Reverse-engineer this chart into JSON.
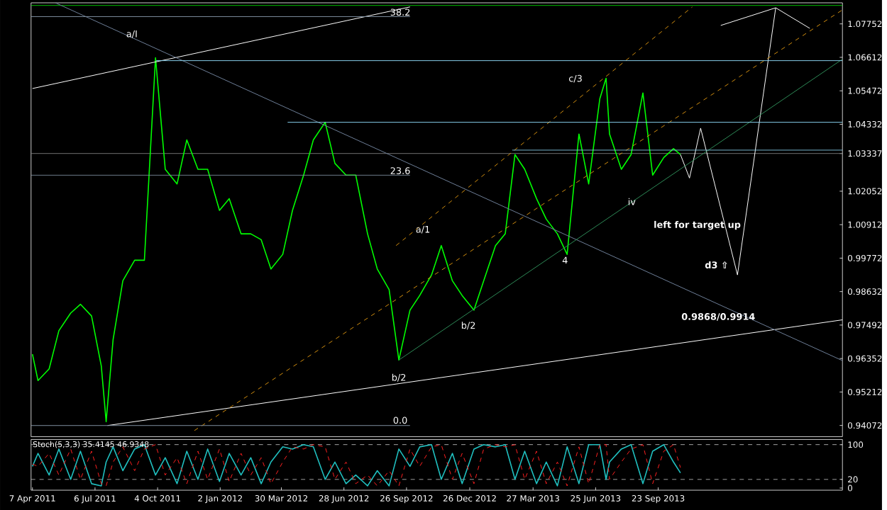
{
  "chart_data": [
    {
      "type": "line",
      "x": [
        "2011-04-07",
        "2011-04-15",
        "2011-05-01",
        "2011-05-15",
        "2011-06-01",
        "2011-06-15",
        "2011-07-01",
        "2011-07-15",
        "2011-07-22",
        "2011-08-01",
        "2011-08-15",
        "2011-09-01",
        "2011-09-15",
        "2011-10-01",
        "2011-10-15",
        "2011-11-01",
        "2011-11-15",
        "2011-12-01",
        "2011-12-15",
        "2012-01-01",
        "2012-01-15",
        "2012-02-01",
        "2012-02-15",
        "2012-03-01",
        "2012-03-15",
        "2012-04-01",
        "2012-04-15",
        "2012-05-01",
        "2012-05-15",
        "2012-06-01",
        "2012-06-15",
        "2012-07-01",
        "2012-07-15",
        "2012-08-01",
        "2012-08-15",
        "2012-09-01",
        "2012-09-15",
        "2012-10-01",
        "2012-10-15",
        "2012-11-01",
        "2012-11-15",
        "2012-12-01",
        "2012-12-15",
        "2013-01-01",
        "2013-01-15",
        "2013-02-01",
        "2013-02-15",
        "2013-03-01",
        "2013-03-15",
        "2013-04-01",
        "2013-04-15",
        "2013-05-01",
        "2013-05-15",
        "2013-06-01",
        "2013-06-15",
        "2013-07-01",
        "2013-07-10",
        "2013-07-15",
        "2013-08-01",
        "2013-08-15",
        "2013-09-01",
        "2013-09-15",
        "2013-10-01",
        "2013-10-15",
        "2013-10-25"
      ],
      "series": [
        {
          "color": "#00ff00",
          "values": [
            0.965,
            0.956,
            0.96,
            0.973,
            0.979,
            0.982,
            0.978,
            0.961,
            0.942,
            0.97,
            0.99,
            0.997,
            0.997,
            1.066,
            1.028,
            1.023,
            1.038,
            1.028,
            1.028,
            1.014,
            1.018,
            1.006,
            1.006,
            1.004,
            0.994,
            0.999,
            1.014,
            1.026,
            1.038,
            1.044,
            1.03,
            1.026,
            1.026,
            1.006,
            0.994,
            0.987,
            0.963,
            0.98,
            0.985,
            0.992,
            1.002,
            0.99,
            0.985,
            0.98,
            0.99,
            1.002,
            1.006,
            1.033,
            1.028,
            1.018,
            1.011,
            1.006,
            0.999,
            1.04,
            1.023,
            1.052,
            1.059,
            1.04,
            1.028,
            1.033,
            1.054,
            1.026,
            1.032,
            1.035,
            1.033
          ]
        },
        {
          "color": "#ffffff",
          "x": [
            "2013-10-25",
            "2013-11-07",
            "2013-11-23",
            "2014-01-15",
            "2014-03-11",
            "2014-04-29"
          ],
          "values": [
            1.033,
            1.025,
            1.042,
            0.992,
            1.083,
            1.076
          ]
        },
        {
          "color": "#ffffff",
          "x": [
            "2013-12-22",
            "2014-03-11"
          ],
          "values": [
            1.077,
            1.083
          ]
        },
        {
          "color": "#ffffff",
          "x": [
            "2011-04-07",
            "2012-10-01"
          ],
          "values": [
            1.0555,
            1.0833
          ]
        },
        {
          "color": "#ffffff",
          "x": [
            "2011-07-24",
            "2014-06-15"
          ],
          "values": [
            0.9407,
            0.9767
          ]
        },
        {
          "color": "#6e7f99",
          "x": [
            "2011-05-10",
            "2014-06-15"
          ],
          "values": [
            1.0847,
            0.9628
          ]
        },
        {
          "color": "#d4900f",
          "line_style": "dashed",
          "x": [
            "2011-11-26",
            "2014-06-15"
          ],
          "values": [
            0.939,
            1.0823
          ]
        },
        {
          "color": "#d4900f",
          "line_style": "dashed",
          "x": [
            "2012-09-11",
            "2013-11-11"
          ],
          "values": [
            1.002,
            1.0833
          ]
        },
        {
          "color": "#2e8b57",
          "x": [
            "2012-09-15",
            "2014-06-15"
          ],
          "values": [
            0.963,
            1.0655
          ]
        },
        {
          "color": "#87ceeb",
          "x": [
            "2011-10-02",
            "2014-06-15"
          ],
          "values": [
            1.065,
            1.065
          ]
        },
        {
          "color": "#87ceeb",
          "x": [
            "2012-04-08",
            "2014-06-15"
          ],
          "values": [
            1.044,
            1.044
          ]
        },
        {
          "color": "#87ceeb",
          "x": [
            "2013-02-25",
            "2014-06-15"
          ],
          "values": [
            1.0345,
            1.0345
          ]
        },
        {
          "color": "#8090a0",
          "x": [
            "2011-04-05",
            "2012-10-01"
          ],
          "values": [
            1.08,
            1.08
          ]
        },
        {
          "color": "#8090a0",
          "x": [
            "2011-04-05",
            "2012-10-01"
          ],
          "values": [
            1.026,
            1.026
          ]
        },
        {
          "color": "#8090a0",
          "x": [
            "2011-04-05",
            "2012-10-01"
          ],
          "values": [
            0.9407,
            0.9407
          ]
        }
      ],
      "xlim": [
        "2011-04-05",
        "2014-06-15"
      ],
      "ylim": [
        0.9369,
        1.0847
      ],
      "yticks": [
        1.07752,
        1.06612,
        1.05472,
        1.04332,
        1.03337,
        1.02052,
        1.00912,
        0.99772,
        0.98632,
        0.97492,
        0.96352,
        0.95212,
        0.94072
      ],
      "ref_lines": [
        {
          "axis": "y",
          "value": 1.03337,
          "color": "#707070"
        },
        {
          "axis": "y",
          "value": 1.0838,
          "color": "#00c000"
        }
      ],
      "annotations": [
        {
          "text": "a/I",
          "x": "2011-08-28",
          "y": 1.074
        },
        "c/3",
        "a/1",
        {
          "text": "iv",
          "x": "2013-08-16",
          "y": 1.017
        },
        "left for target up",
        {
          "text": "4",
          "x": "2013-05-12",
          "y": 0.997
        },
        "b/2",
        {
          "text": "b/2",
          "x": "2012-09-15",
          "y": 0.957
        },
        "d3 ⇧",
        "0.9868/0.9914",
        {
          "text": "38.2",
          "x": "2012-09-17",
          "y": 1.0815
        },
        {
          "text": "23.6",
          "x": "2012-09-17",
          "y": 1.0275
        },
        {
          "text": "0.0",
          "x": "2012-09-17",
          "y": 0.9425
        }
      ],
      "tick_labels": "y"
    },
    {
      "type": "line",
      "title": "Stoch(5,3,3) 35.4145 46.9348",
      "x": [
        "2011-04-07",
        "2011-04-15",
        "2011-05-01",
        "2011-05-15",
        "2011-06-01",
        "2011-06-15",
        "2011-07-01",
        "2011-07-15",
        "2011-07-22",
        "2011-08-01",
        "2011-08-15",
        "2011-09-01",
        "2011-09-15",
        "2011-10-01",
        "2011-10-15",
        "2011-11-01",
        "2011-11-15",
        "2011-12-01",
        "2011-12-15",
        "2012-01-01",
        "2012-01-15",
        "2012-02-01",
        "2012-02-15",
        "2012-03-01",
        "2012-03-15",
        "2012-04-01",
        "2012-04-15",
        "2012-05-01",
        "2012-05-15",
        "2012-06-01",
        "2012-06-15",
        "2012-07-01",
        "2012-07-15",
        "2012-08-01",
        "2012-08-15",
        "2012-09-01",
        "2012-09-15",
        "2012-10-01",
        "2012-10-15",
        "2012-11-01",
        "2012-11-15",
        "2012-12-01",
        "2012-12-15",
        "2013-01-01",
        "2013-01-15",
        "2013-02-01",
        "2013-02-15",
        "2013-03-01",
        "2013-03-15",
        "2013-04-01",
        "2013-04-15",
        "2013-05-01",
        "2013-05-15",
        "2013-06-01",
        "2013-06-15",
        "2013-07-01",
        "2013-07-10",
        "2013-07-15",
        "2013-08-01",
        "2013-08-15",
        "2013-09-01",
        "2013-09-15",
        "2013-10-01",
        "2013-10-15",
        "2013-10-25"
      ],
      "series": [
        {
          "color": "#20c0c0",
          "values": [
            50,
            80,
            30,
            90,
            20,
            85,
            10,
            5,
            60,
            95,
            40,
            90,
            100,
            30,
            70,
            10,
            85,
            20,
            90,
            15,
            80,
            30,
            70,
            10,
            60,
            95,
            90,
            100,
            95,
            20,
            60,
            10,
            30,
            5,
            40,
            5,
            90,
            50,
            95,
            100,
            20,
            80,
            10,
            90,
            100,
            95,
            100,
            20,
            85,
            10,
            60,
            5,
            95,
            10,
            100,
            100,
            20,
            60,
            90,
            100,
            10,
            85,
            100,
            60,
            35
          ]
        },
        {
          "color": "#ff2020",
          "line_style": "dashed",
          "values": [
            55,
            50,
            80,
            30,
            90,
            20,
            85,
            10,
            5,
            60,
            95,
            40,
            90,
            100,
            30,
            70,
            10,
            85,
            20,
            90,
            15,
            80,
            30,
            70,
            10,
            60,
            95,
            90,
            100,
            95,
            20,
            60,
            10,
            30,
            5,
            40,
            5,
            90,
            50,
            95,
            100,
            20,
            80,
            10,
            90,
            100,
            95,
            100,
            20,
            85,
            10,
            60,
            5,
            95,
            10,
            100,
            100,
            20,
            60,
            90,
            100,
            10,
            85,
            100,
            47
          ]
        }
      ],
      "xlim": [
        "2011-04-05",
        "2014-06-15"
      ],
      "xticks": [
        {
          "value": "2011-04-07",
          "label": "7 Apr 2011"
        },
        {
          "value": "2011-07-06",
          "label": "6 Jul 2011"
        },
        {
          "value": "2011-10-04",
          "label": "4 Oct 2011"
        },
        {
          "value": "2012-01-02",
          "label": "2 Jan 2012"
        },
        {
          "value": "2012-03-30",
          "label": "30 Mar 2012"
        },
        {
          "value": "2012-06-28",
          "label": "28 Jun 2012"
        },
        {
          "value": "2012-09-26",
          "label": "26 Sep 2012"
        },
        {
          "value": "2012-12-26",
          "label": "26 Dec 2012"
        },
        {
          "value": "2013-03-27",
          "label": "27 Mar 2013"
        },
        {
          "value": "2013-06-25",
          "label": "25 Jun 2013"
        },
        {
          "value": "2013-09-23",
          "label": "23 Sep 2013"
        }
      ],
      "ylim": [
        -5,
        112
      ],
      "yticks": [
        0,
        20,
        100
      ],
      "ref_lines": [
        {
          "axis": "y",
          "value": 20,
          "color": "#c0c0c0",
          "line_style": "dashed"
        },
        {
          "axis": "y",
          "value": 100,
          "color": "#c0c0c0",
          "line_style": "dashed"
        }
      ]
    }
  ]
}
